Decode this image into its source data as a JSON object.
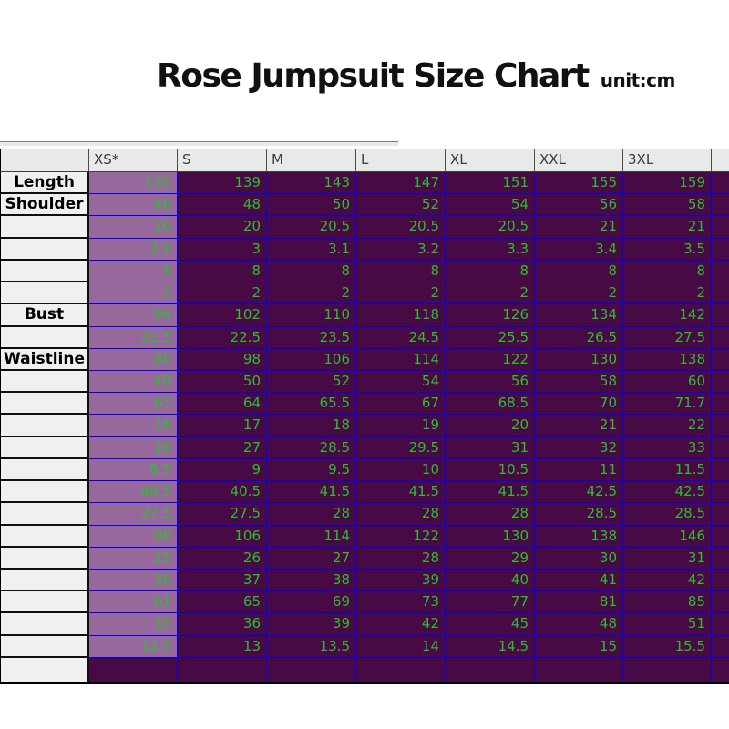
{
  "title": {
    "text": "Rose Jumpsuit Size Chart",
    "unit": "unit:cm"
  },
  "colors": {
    "cell_bg": "#480a44",
    "highlight_bg": "#97689b",
    "grid_blue": "#0000f0",
    "value_green": "#2dbe2d",
    "header_bg": "#e9e9e9",
    "label_bg": "#f0f0f0"
  },
  "chart_data": {
    "type": "table",
    "title": "Rose Jumpsuit Size Chart",
    "unit": "cm",
    "columns": [
      "XS*",
      "S",
      "M",
      "L",
      "XL",
      "XXL",
      "3XL"
    ],
    "highlighted_column": "XS*",
    "rows": [
      {
        "label": "Length",
        "values": [
          "135",
          "139",
          "143",
          "147",
          "151",
          "155",
          "159"
        ]
      },
      {
        "label": "Shoulder",
        "values": [
          "46",
          "48",
          "50",
          "52",
          "54",
          "56",
          "58"
        ]
      },
      {
        "label": "",
        "values": [
          "20",
          "20",
          "20.5",
          "20.5",
          "20.5",
          "21",
          "21"
        ]
      },
      {
        "label": "",
        "values": [
          "2.9",
          "3",
          "3.1",
          "3.2",
          "3.3",
          "3.4",
          "3.5"
        ]
      },
      {
        "label": "",
        "values": [
          "8",
          "8",
          "8",
          "8",
          "8",
          "8",
          "8"
        ]
      },
      {
        "label": "",
        "values": [
          "2",
          "2",
          "2",
          "2",
          "2",
          "2",
          "2"
        ]
      },
      {
        "label": "Bust",
        "values": [
          "94",
          "102",
          "110",
          "118",
          "126",
          "134",
          "142"
        ]
      },
      {
        "label": "",
        "values": [
          "21.5",
          "22.5",
          "23.5",
          "24.5",
          "25.5",
          "26.5",
          "27.5"
        ]
      },
      {
        "label": "Waistline",
        "values": [
          "90",
          "98",
          "106",
          "114",
          "122",
          "130",
          "138"
        ]
      },
      {
        "label": "",
        "values": [
          "48",
          "50",
          "52",
          "54",
          "56",
          "58",
          "60"
        ]
      },
      {
        "label": "",
        "values": [
          "63",
          "64",
          "65.5",
          "67",
          "68.5",
          "70",
          "71.7"
        ]
      },
      {
        "label": "",
        "values": [
          "16",
          "17",
          "18",
          "19",
          "20",
          "21",
          "22"
        ]
      },
      {
        "label": "",
        "values": [
          "26",
          "27",
          "28.5",
          "29.5",
          "31",
          "32",
          "33"
        ]
      },
      {
        "label": "",
        "values": [
          "8.5",
          "9",
          "9.5",
          "10",
          "10.5",
          "11",
          "11.5"
        ]
      },
      {
        "label": "",
        "values": [
          "40.5",
          "40.5",
          "41.5",
          "41.5",
          "41.5",
          "42.5",
          "42.5"
        ]
      },
      {
        "label": "",
        "values": [
          "27.5",
          "27.5",
          "28",
          "28",
          "28",
          "28.5",
          "28.5"
        ]
      },
      {
        "label": "",
        "values": [
          "98",
          "106",
          "114",
          "122",
          "130",
          "138",
          "146"
        ]
      },
      {
        "label": "",
        "values": [
          "25",
          "26",
          "27",
          "28",
          "29",
          "30",
          "31"
        ]
      },
      {
        "label": "",
        "values": [
          "36",
          "37",
          "38",
          "39",
          "40",
          "41",
          "42"
        ]
      },
      {
        "label": "",
        "values": [
          "61",
          "65",
          "69",
          "73",
          "77",
          "81",
          "85"
        ]
      },
      {
        "label": "",
        "values": [
          "33",
          "36",
          "39",
          "42",
          "45",
          "48",
          "51"
        ]
      },
      {
        "label": "",
        "values": [
          "12.5",
          "13",
          "13.5",
          "14",
          "14.5",
          "15",
          "15.5"
        ]
      }
    ]
  }
}
